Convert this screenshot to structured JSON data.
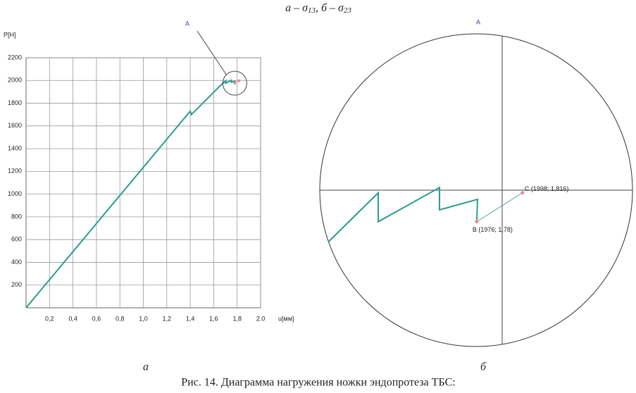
{
  "caption_top": {
    "a": "а – σ",
    "a_sub": "13",
    "b": ", б – σ",
    "b_sub": "23"
  },
  "chart_data": [
    {
      "type": "line",
      "ylabel": "P[H]",
      "xlabel": "u[мм]",
      "annotation": "A",
      "xlim": [
        0,
        2.0
      ],
      "ylim": [
        0,
        2200
      ],
      "xticks": [
        {
          "value": 0.2,
          "label": "0,2"
        },
        {
          "value": 0.4,
          "label": "0,4"
        },
        {
          "value": 0.6,
          "label": "0,6"
        },
        {
          "value": 0.8,
          "label": "0,8"
        },
        {
          "value": 1.0,
          "label": "1,0"
        },
        {
          "value": 1.2,
          "label": "1,2"
        },
        {
          "value": 1.4,
          "label": "1,4"
        },
        {
          "value": 1.6,
          "label": "1,6"
        },
        {
          "value": 1.8,
          "label": "1,8"
        },
        {
          "value": 2.0,
          "label": "2.0"
        }
      ],
      "yticks": [
        200,
        400,
        600,
        800,
        1000,
        1200,
        1400,
        1600,
        1800,
        2000,
        2200
      ],
      "grid": true,
      "series": [
        {
          "color": "#2a9d8f",
          "x": [
            0,
            1.4,
            1.41,
            1.662,
            1.7025,
            1.7025,
            1.7507,
            1.7507,
            1.78,
            1.78
          ],
          "values": [
            0,
            1730,
            1700,
            1960,
            1998,
            1976,
            2002,
            1985,
            1993,
            1976
          ]
        },
        {
          "color": "#e78a9a",
          "x": [
            1.78,
            1.816
          ],
          "values": [
            1976,
            1998
          ]
        }
      ]
    },
    {
      "type": "zoom",
      "title": "A",
      "xlim": [
        1.6565,
        1.9025
      ],
      "ylim": [
        1881,
        2119
      ],
      "crosshair": {
        "x": 1.8,
        "y": 2000
      },
      "series": [
        {
          "color": "#2a9d8f",
          "x": [
            1.6626,
            1.7025,
            1.7025,
            1.7507,
            1.7507,
            1.7806,
            1.78
          ],
          "values": [
            1960,
            1998,
            1976,
            2002,
            1985,
            1993,
            1976
          ]
        },
        {
          "color": "#5aa9a0",
          "x": [
            1.78,
            1.816
          ],
          "values": [
            1976,
            1998
          ]
        }
      ],
      "points": [
        {
          "label": "B (1976; 1,78)",
          "x": 1.78,
          "y": 1976
        },
        {
          "label": "C (1998; 1,816)",
          "x": 1.816,
          "y": 1998
        }
      ]
    }
  ],
  "panel_labels": [
    "а",
    "б"
  ],
  "caption": "Рис. 14. Диаграмма нагружения ножки эндопротеза ТБС:"
}
